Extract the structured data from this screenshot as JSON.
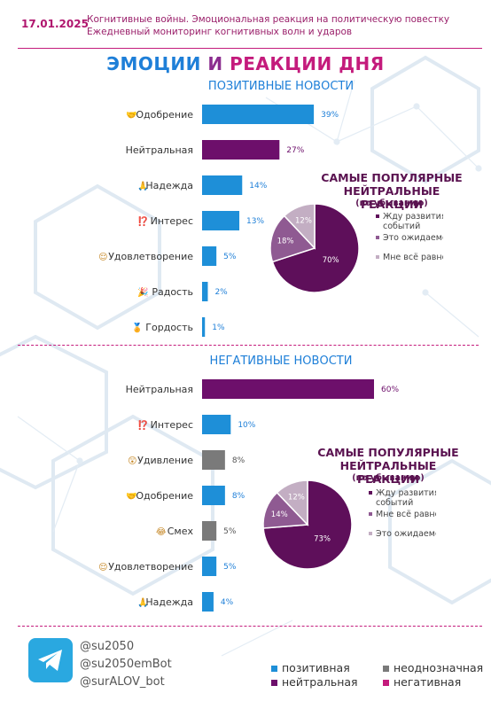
{
  "header": {
    "date": "17.01.2025",
    "subtitle1": "Когнитивные войны. Эмоциональная реакция на политическую повестку",
    "subtitle2": "Ежедневный мониторинг когнитивных волн и ударов"
  },
  "title": {
    "part1": "ЭМОЦИИ",
    "part2": " И ",
    "part3": "РЕАКЦИИ ДНЯ"
  },
  "sections": {
    "positive": "ПОЗИТИВНЫЕ НОВОСТИ",
    "negative": "НЕГАТИВНЫЕ НОВОСТИ"
  },
  "pies": {
    "title1": "САМЫЕ ПОПУЛЯРНЫЕ",
    "title2": "НЕЙТРАЛЬНЫЕ РЕАКЦИИ",
    "subtitle": "(по убыванию)"
  },
  "footer": {
    "handles": [
      "@su2050",
      "@su2050emBot",
      "@surALOV_bot"
    ],
    "legend": [
      {
        "label": "позитивная",
        "color": "#1e8fd8"
      },
      {
        "label": "неоднозначная",
        "color": "#7a7a7a"
      },
      {
        "label": "нейтральная",
        "color": "#6d0f6b"
      },
      {
        "label": "негативная",
        "color": "#c41b7c"
      }
    ]
  },
  "colors": {
    "positive": "#1e8fd8",
    "neutral": "#6d0f6b",
    "ambiguous": "#7a7a7a",
    "pie_dark": "#5e0f5a",
    "pie_mid": "#8f5a92",
    "pie_light": "#c3aec3"
  },
  "chart_data": [
    {
      "type": "bar",
      "orientation": "horizontal",
      "title": "ПОЗИТИВНЫЕ НОВОСТИ",
      "xlim": [
        0,
        60
      ],
      "categories": [
        {
          "label": "Одобрение",
          "icon": "🤝",
          "value": 39,
          "value_label": "39%",
          "kind": "positive"
        },
        {
          "label": "Нейтральная",
          "icon": "",
          "value": 27,
          "value_label": "27%",
          "kind": "neutral"
        },
        {
          "label": "Надежда",
          "icon": "🙏",
          "value": 14,
          "value_label": "14%",
          "kind": "positive"
        },
        {
          "label": "Интерес",
          "icon": "⁉️",
          "value": 13,
          "value_label": "13%",
          "kind": "positive"
        },
        {
          "label": "Удовлетворение",
          "icon": "😌",
          "value": 5,
          "value_label": "5%",
          "kind": "positive"
        },
        {
          "label": "Радость",
          "icon": "🎉",
          "value": 2,
          "value_label": "2%",
          "kind": "positive"
        },
        {
          "label": "Гордость",
          "icon": "🏅",
          "value": 1,
          "value_label": "1%",
          "kind": "positive"
        }
      ]
    },
    {
      "type": "pie",
      "title": "САМЫЕ ПОПУЛЯРНЫЕ НЕЙТРАЛЬНЫЕ РЕАКЦИИ",
      "subtitle": "(по убыванию)",
      "slices": [
        {
          "label": "Жду развития событий",
          "value": 70,
          "value_label": "70%",
          "shade": "dark"
        },
        {
          "label": "Это ожидаемо",
          "value": 18,
          "value_label": "18%",
          "shade": "mid"
        },
        {
          "label": "Мне всё равно",
          "value": 12,
          "value_label": "12%",
          "shade": "light"
        }
      ]
    },
    {
      "type": "bar",
      "orientation": "horizontal",
      "title": "НЕГАТИВНЫЕ НОВОСТИ",
      "xlim": [
        0,
        60
      ],
      "categories": [
        {
          "label": "Нейтральная",
          "icon": "",
          "value": 60,
          "value_label": "60%",
          "kind": "neutral"
        },
        {
          "label": "Интерес",
          "icon": "⁉️",
          "value": 10,
          "value_label": "10%",
          "kind": "positive"
        },
        {
          "label": "Удивление",
          "icon": "😲",
          "value": 8,
          "value_label": "8%",
          "kind": "ambiguous"
        },
        {
          "label": "Одобрение",
          "icon": "🤝",
          "value": 8,
          "value_label": "8%",
          "kind": "positive"
        },
        {
          "label": "Смех",
          "icon": "😂",
          "value": 5,
          "value_label": "5%",
          "kind": "ambiguous"
        },
        {
          "label": "Удовлетворение",
          "icon": "😌",
          "value": 5,
          "value_label": "5%",
          "kind": "positive"
        },
        {
          "label": "Надежда",
          "icon": "🙏",
          "value": 4,
          "value_label": "4%",
          "kind": "positive"
        }
      ]
    },
    {
      "type": "pie",
      "title": "САМЫЕ ПОПУЛЯРНЫЕ НЕЙТРАЛЬНЫЕ РЕАКЦИИ",
      "subtitle": "(по убыванию)",
      "slices": [
        {
          "label": "Жду развития событий",
          "value": 73,
          "value_label": "73%",
          "shade": "dark"
        },
        {
          "label": "Мне всё равно",
          "value": 14,
          "value_label": "14%",
          "shade": "mid"
        },
        {
          "label": "Это ожидаемо",
          "value": 12,
          "value_label": "12%",
          "shade": "light"
        }
      ]
    }
  ]
}
